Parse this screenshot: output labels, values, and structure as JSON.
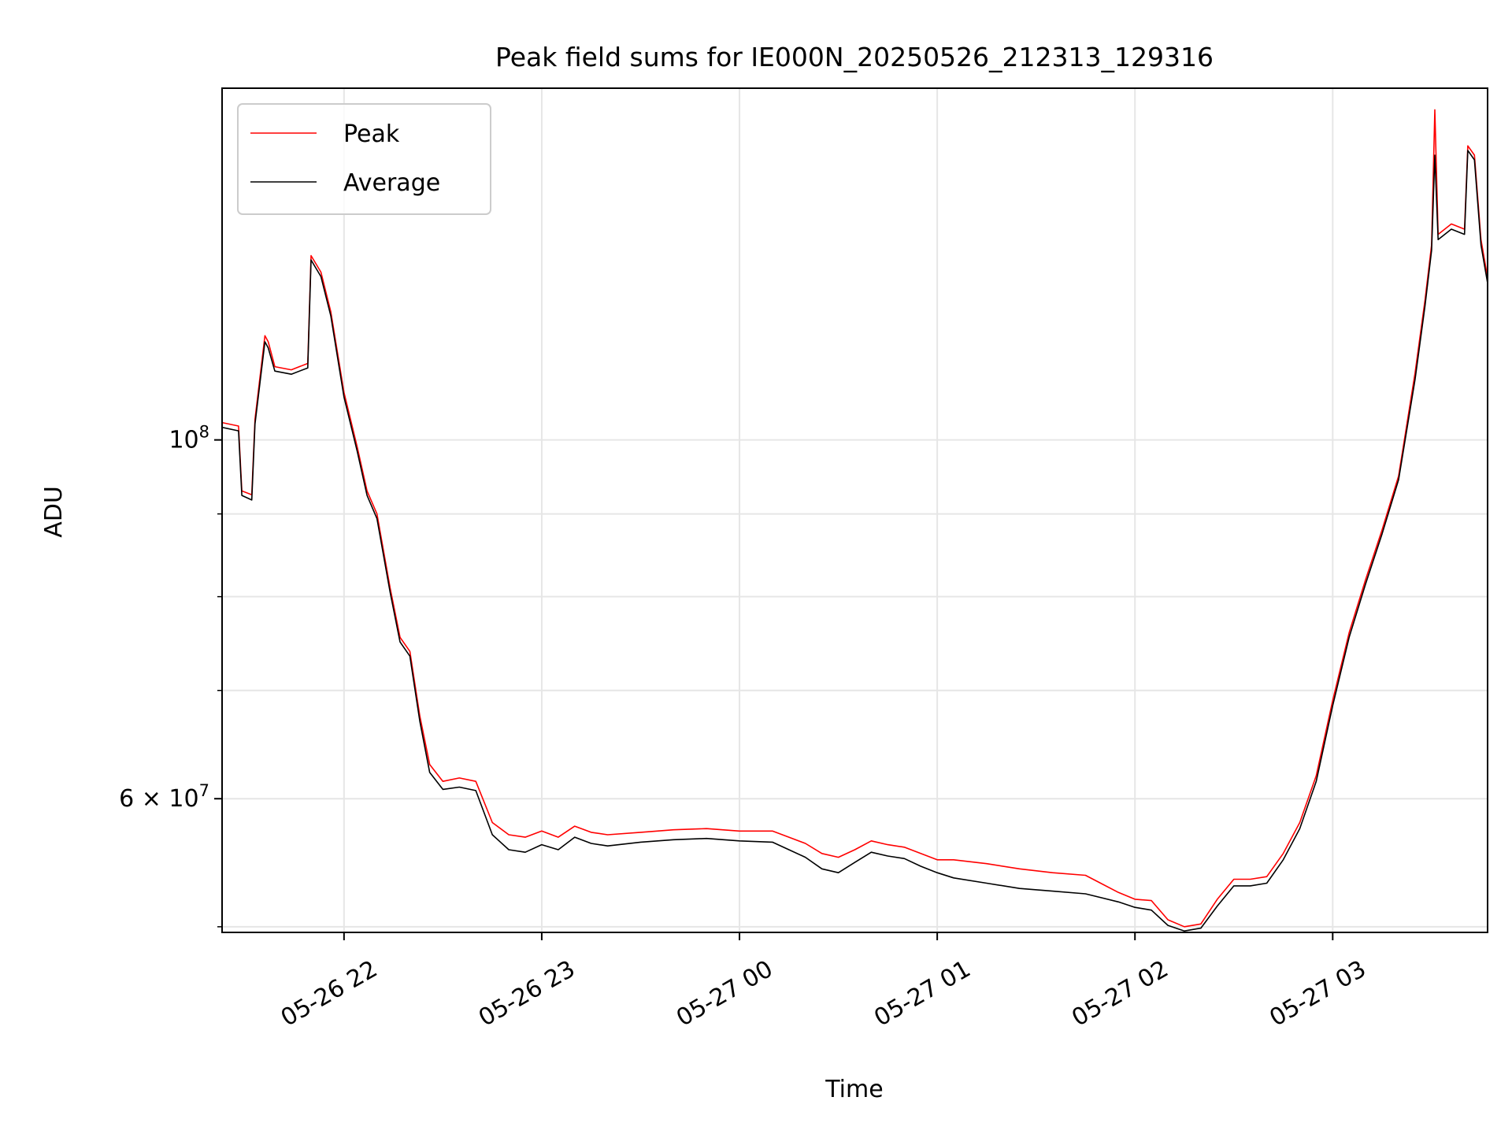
{
  "chart_data": {
    "type": "line",
    "title": "Peak field sums for IE000N_20250526_212313_129316",
    "xlabel": "Time",
    "ylabel": "ADU",
    "y_scale": "log",
    "grid": true,
    "legend_position": "top-left",
    "xlim": [
      "2025-05-26 21:23",
      "2025-05-27 03:47"
    ],
    "ylim": [
      49600000,
      165000000
    ],
    "x_ticks": [
      {
        "t": "2025-05-26 22:00",
        "label": "05-26 22"
      },
      {
        "t": "2025-05-26 23:00",
        "label": "05-26 23"
      },
      {
        "t": "2025-05-27 00:00",
        "label": "05-27 00"
      },
      {
        "t": "2025-05-27 01:00",
        "label": "05-27 01"
      },
      {
        "t": "2025-05-27 02:00",
        "label": "05-27 02"
      },
      {
        "t": "2025-05-27 03:00",
        "label": "05-27 03"
      }
    ],
    "y_major_ticks": [
      {
        "value": 60000000,
        "base": "6 × 10",
        "exp": "7"
      },
      {
        "value": 100000000,
        "base": "10",
        "exp": "8"
      }
    ],
    "y_minor_ticks": [
      50000000,
      70000000,
      80000000,
      90000000
    ],
    "series": [
      {
        "name": "Peak",
        "color": "#ff0000",
        "points": [
          [
            "2025-05-26 21:23",
            102500000
          ],
          [
            "2025-05-26 21:28",
            102000000
          ],
          [
            "2025-05-26 21:29",
            93000000
          ],
          [
            "2025-05-26 21:32",
            92500000
          ],
          [
            "2025-05-26 21:33",
            103000000
          ],
          [
            "2025-05-26 21:36",
            116000000
          ],
          [
            "2025-05-26 21:37",
            115000000
          ],
          [
            "2025-05-26 21:39",
            111000000
          ],
          [
            "2025-05-26 21:44",
            110500000
          ],
          [
            "2025-05-26 21:49",
            111500000
          ],
          [
            "2025-05-26 21:50",
            130000000
          ],
          [
            "2025-05-26 21:53",
            127000000
          ],
          [
            "2025-05-26 21:56",
            120000000
          ],
          [
            "2025-05-26 22:00",
            107000000
          ],
          [
            "2025-05-26 22:04",
            99000000
          ],
          [
            "2025-05-26 22:07",
            93000000
          ],
          [
            "2025-05-26 22:10",
            90000000
          ],
          [
            "2025-05-26 22:14",
            81000000
          ],
          [
            "2025-05-26 22:17",
            75500000
          ],
          [
            "2025-05-26 22:20",
            74000000
          ],
          [
            "2025-05-26 22:23",
            67500000
          ],
          [
            "2025-05-26 22:26",
            63000000
          ],
          [
            "2025-05-26 22:30",
            61500000
          ],
          [
            "2025-05-26 22:35",
            61800000
          ],
          [
            "2025-05-26 22:40",
            61500000
          ],
          [
            "2025-05-26 22:45",
            58000000
          ],
          [
            "2025-05-26 22:50",
            57000000
          ],
          [
            "2025-05-26 22:55",
            56800000
          ],
          [
            "2025-05-26 23:00",
            57300000
          ],
          [
            "2025-05-26 23:05",
            56800000
          ],
          [
            "2025-05-26 23:10",
            57700000
          ],
          [
            "2025-05-26 23:15",
            57200000
          ],
          [
            "2025-05-26 23:20",
            57000000
          ],
          [
            "2025-05-26 23:30",
            57200000
          ],
          [
            "2025-05-26 23:40",
            57400000
          ],
          [
            "2025-05-26 23:50",
            57500000
          ],
          [
            "2025-05-27 00:00",
            57300000
          ],
          [
            "2025-05-27 00:10",
            57300000
          ],
          [
            "2025-05-27 00:15",
            56800000
          ],
          [
            "2025-05-27 00:20",
            56300000
          ],
          [
            "2025-05-27 00:25",
            55500000
          ],
          [
            "2025-05-27 00:30",
            55200000
          ],
          [
            "2025-05-27 00:35",
            55800000
          ],
          [
            "2025-05-27 00:40",
            56500000
          ],
          [
            "2025-05-27 00:45",
            56200000
          ],
          [
            "2025-05-27 00:50",
            56000000
          ],
          [
            "2025-05-27 00:55",
            55500000
          ],
          [
            "2025-05-27 01:00",
            55000000
          ],
          [
            "2025-05-27 01:05",
            55000000
          ],
          [
            "2025-05-27 01:15",
            54700000
          ],
          [
            "2025-05-27 01:25",
            54300000
          ],
          [
            "2025-05-27 01:35",
            54000000
          ],
          [
            "2025-05-27 01:45",
            53800000
          ],
          [
            "2025-05-27 01:55",
            52500000
          ],
          [
            "2025-05-27 02:00",
            52000000
          ],
          [
            "2025-05-27 02:05",
            51900000
          ],
          [
            "2025-05-27 02:10",
            50500000
          ],
          [
            "2025-05-27 02:15",
            50000000
          ],
          [
            "2025-05-27 02:20",
            50200000
          ],
          [
            "2025-05-27 02:25",
            52000000
          ],
          [
            "2025-05-27 02:30",
            53500000
          ],
          [
            "2025-05-27 02:35",
            53500000
          ],
          [
            "2025-05-27 02:40",
            53700000
          ],
          [
            "2025-05-27 02:45",
            55500000
          ],
          [
            "2025-05-27 02:50",
            58000000
          ],
          [
            "2025-05-27 02:55",
            62000000
          ],
          [
            "2025-05-27 03:00",
            69000000
          ],
          [
            "2025-05-27 03:05",
            76000000
          ],
          [
            "2025-05-27 03:10",
            82000000
          ],
          [
            "2025-05-27 03:15",
            88000000
          ],
          [
            "2025-05-27 03:20",
            95000000
          ],
          [
            "2025-05-27 03:25",
            110000000
          ],
          [
            "2025-05-27 03:28",
            122000000
          ],
          [
            "2025-05-27 03:30",
            132000000
          ],
          [
            "2025-05-27 03:31",
            160000000
          ],
          [
            "2025-05-27 03:32",
            134000000
          ],
          [
            "2025-05-27 03:36",
            136000000
          ],
          [
            "2025-05-27 03:40",
            135000000
          ],
          [
            "2025-05-27 03:41",
            152000000
          ],
          [
            "2025-05-27 03:43",
            150000000
          ],
          [
            "2025-05-27 03:45",
            133000000
          ],
          [
            "2025-05-27 03:47",
            126000000
          ]
        ]
      },
      {
        "name": "Average",
        "color": "#000000",
        "points": [
          [
            "2025-05-26 21:23",
            101800000
          ],
          [
            "2025-05-26 21:28",
            101300000
          ],
          [
            "2025-05-26 21:29",
            92400000
          ],
          [
            "2025-05-26 21:32",
            91800000
          ],
          [
            "2025-05-26 21:33",
            102300000
          ],
          [
            "2025-05-26 21:36",
            115000000
          ],
          [
            "2025-05-26 21:37",
            114000000
          ],
          [
            "2025-05-26 21:39",
            110300000
          ],
          [
            "2025-05-26 21:44",
            109800000
          ],
          [
            "2025-05-26 21:49",
            110800000
          ],
          [
            "2025-05-26 21:50",
            129200000
          ],
          [
            "2025-05-26 21:53",
            126200000
          ],
          [
            "2025-05-26 21:56",
            119300000
          ],
          [
            "2025-05-26 22:00",
            106300000
          ],
          [
            "2025-05-26 22:04",
            98400000
          ],
          [
            "2025-05-26 22:07",
            92400000
          ],
          [
            "2025-05-26 22:10",
            89400000
          ],
          [
            "2025-05-26 22:14",
            80500000
          ],
          [
            "2025-05-26 22:17",
            75000000
          ],
          [
            "2025-05-26 22:20",
            73500000
          ],
          [
            "2025-05-26 22:23",
            67000000
          ],
          [
            "2025-05-26 22:26",
            62300000
          ],
          [
            "2025-05-26 22:30",
            60800000
          ],
          [
            "2025-05-26 22:35",
            61000000
          ],
          [
            "2025-05-26 22:40",
            60700000
          ],
          [
            "2025-05-26 22:45",
            57000000
          ],
          [
            "2025-05-26 22:50",
            55800000
          ],
          [
            "2025-05-26 22:55",
            55600000
          ],
          [
            "2025-05-26 23:00",
            56200000
          ],
          [
            "2025-05-26 23:05",
            55800000
          ],
          [
            "2025-05-26 23:10",
            56800000
          ],
          [
            "2025-05-26 23:15",
            56300000
          ],
          [
            "2025-05-26 23:20",
            56100000
          ],
          [
            "2025-05-26 23:30",
            56400000
          ],
          [
            "2025-05-26 23:40",
            56600000
          ],
          [
            "2025-05-26 23:50",
            56700000
          ],
          [
            "2025-05-27 00:00",
            56500000
          ],
          [
            "2025-05-27 00:10",
            56400000
          ],
          [
            "2025-05-27 00:15",
            55800000
          ],
          [
            "2025-05-27 00:20",
            55200000
          ],
          [
            "2025-05-27 00:25",
            54300000
          ],
          [
            "2025-05-27 00:30",
            54000000
          ],
          [
            "2025-05-27 00:35",
            54800000
          ],
          [
            "2025-05-27 00:40",
            55600000
          ],
          [
            "2025-05-27 00:45",
            55300000
          ],
          [
            "2025-05-27 00:50",
            55100000
          ],
          [
            "2025-05-27 00:55",
            54500000
          ],
          [
            "2025-05-27 01:00",
            54000000
          ],
          [
            "2025-05-27 01:05",
            53600000
          ],
          [
            "2025-05-27 01:15",
            53200000
          ],
          [
            "2025-05-27 01:25",
            52800000
          ],
          [
            "2025-05-27 01:35",
            52600000
          ],
          [
            "2025-05-27 01:45",
            52400000
          ],
          [
            "2025-05-27 01:55",
            51800000
          ],
          [
            "2025-05-27 02:00",
            51400000
          ],
          [
            "2025-05-27 02:05",
            51200000
          ],
          [
            "2025-05-27 02:10",
            50100000
          ],
          [
            "2025-05-27 02:15",
            49700000
          ],
          [
            "2025-05-27 02:20",
            49900000
          ],
          [
            "2025-05-27 02:25",
            51500000
          ],
          [
            "2025-05-27 02:30",
            53000000
          ],
          [
            "2025-05-27 02:35",
            53000000
          ],
          [
            "2025-05-27 02:40",
            53200000
          ],
          [
            "2025-05-27 02:45",
            55000000
          ],
          [
            "2025-05-27 02:50",
            57500000
          ],
          [
            "2025-05-27 02:55",
            61500000
          ],
          [
            "2025-05-27 03:00",
            68500000
          ],
          [
            "2025-05-27 03:05",
            75500000
          ],
          [
            "2025-05-27 03:10",
            81500000
          ],
          [
            "2025-05-27 03:15",
            87500000
          ],
          [
            "2025-05-27 03:20",
            94500000
          ],
          [
            "2025-05-27 03:25",
            109000000
          ],
          [
            "2025-05-27 03:28",
            121000000
          ],
          [
            "2025-05-27 03:30",
            131000000
          ],
          [
            "2025-05-27 03:31",
            150000000
          ],
          [
            "2025-05-27 03:32",
            133000000
          ],
          [
            "2025-05-27 03:36",
            135000000
          ],
          [
            "2025-05-27 03:40",
            134000000
          ],
          [
            "2025-05-27 03:41",
            151000000
          ],
          [
            "2025-05-27 03:43",
            149000000
          ],
          [
            "2025-05-27 03:45",
            132000000
          ],
          [
            "2025-05-27 03:47",
            125000000
          ]
        ]
      }
    ]
  }
}
